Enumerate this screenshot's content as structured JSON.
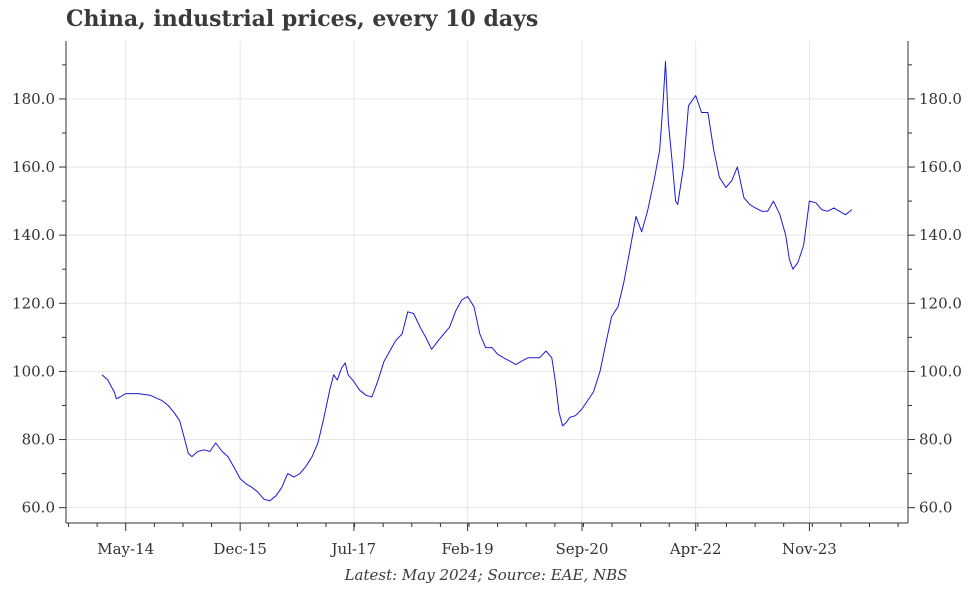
{
  "title": "China, industrial prices, every 10 days",
  "caption": "Latest: May 2024; Source: EAE, NBS",
  "chart_data": {
    "type": "line",
    "title": "China, industrial prices, every 10 days",
    "xlabel": "",
    "ylabel": "",
    "xlim": [
      2013.5,
      2025.2
    ],
    "ylim": [
      55.5,
      197
    ],
    "x_ticks": [
      {
        "value": 2014.33,
        "label": "May-14"
      },
      {
        "value": 2015.92,
        "label": "Dec-15"
      },
      {
        "value": 2017.5,
        "label": "Jul-17"
      },
      {
        "value": 2019.08,
        "label": "Feb-19"
      },
      {
        "value": 2020.67,
        "label": "Sep-20"
      },
      {
        "value": 2022.25,
        "label": "Apr-22"
      },
      {
        "value": 2023.83,
        "label": "Nov-23"
      }
    ],
    "y_ticks": [
      60.0,
      80.0,
      100.0,
      120.0,
      140.0,
      160.0,
      180.0
    ],
    "y_tick_labels": [
      "60.0",
      "80.0",
      "100.0",
      "120.0",
      "140.0",
      "160.0",
      "180.0"
    ],
    "grid": true,
    "line_color": "#1a1adb",
    "series": [
      {
        "name": "",
        "points": [
          [
            2014.0,
            99
          ],
          [
            2014.08,
            97.5
          ],
          [
            2014.17,
            94
          ],
          [
            2014.2,
            92
          ],
          [
            2014.25,
            92.5
          ],
          [
            2014.33,
            93.5
          ],
          [
            2014.5,
            93.5
          ],
          [
            2014.67,
            93
          ],
          [
            2014.83,
            91.5
          ],
          [
            2014.92,
            90
          ],
          [
            2015.0,
            88
          ],
          [
            2015.08,
            85.5
          ],
          [
            2015.15,
            80
          ],
          [
            2015.2,
            76
          ],
          [
            2015.25,
            75
          ],
          [
            2015.33,
            76.5
          ],
          [
            2015.42,
            77
          ],
          [
            2015.5,
            76.5
          ],
          [
            2015.58,
            79
          ],
          [
            2015.67,
            76.5
          ],
          [
            2015.75,
            75
          ],
          [
            2015.83,
            72
          ],
          [
            2015.92,
            68.5
          ],
          [
            2016.0,
            67
          ],
          [
            2016.08,
            66
          ],
          [
            2016.17,
            64.5
          ],
          [
            2016.25,
            62.5
          ],
          [
            2016.33,
            62
          ],
          [
            2016.42,
            63.5
          ],
          [
            2016.5,
            66
          ],
          [
            2016.58,
            70
          ],
          [
            2016.67,
            69
          ],
          [
            2016.75,
            70
          ],
          [
            2016.83,
            72
          ],
          [
            2016.92,
            75
          ],
          [
            2017.0,
            79
          ],
          [
            2017.08,
            86
          ],
          [
            2017.17,
            95
          ],
          [
            2017.22,
            99
          ],
          [
            2017.27,
            97.5
          ],
          [
            2017.33,
            101
          ],
          [
            2017.38,
            102.5
          ],
          [
            2017.42,
            99
          ],
          [
            2017.5,
            97
          ],
          [
            2017.58,
            94.5
          ],
          [
            2017.67,
            93
          ],
          [
            2017.75,
            92.5
          ],
          [
            2017.83,
            97
          ],
          [
            2017.92,
            103
          ],
          [
            2018.0,
            106
          ],
          [
            2018.08,
            109
          ],
          [
            2018.17,
            111
          ],
          [
            2018.25,
            117.5
          ],
          [
            2018.33,
            117
          ],
          [
            2018.42,
            113
          ],
          [
            2018.5,
            110
          ],
          [
            2018.58,
            106.5
          ],
          [
            2018.67,
            109
          ],
          [
            2018.75,
            111
          ],
          [
            2018.83,
            113
          ],
          [
            2018.92,
            118
          ],
          [
            2019.0,
            121
          ],
          [
            2019.08,
            122
          ],
          [
            2019.17,
            119
          ],
          [
            2019.25,
            111
          ],
          [
            2019.33,
            107
          ],
          [
            2019.42,
            107
          ],
          [
            2019.5,
            105
          ],
          [
            2019.58,
            104
          ],
          [
            2019.67,
            103
          ],
          [
            2019.75,
            102
          ],
          [
            2019.83,
            103
          ],
          [
            2019.92,
            104
          ],
          [
            2020.0,
            104
          ],
          [
            2020.08,
            104
          ],
          [
            2020.17,
            106
          ],
          [
            2020.25,
            104
          ],
          [
            2020.3,
            97
          ],
          [
            2020.35,
            88
          ],
          [
            2020.4,
            84
          ],
          [
            2020.45,
            85
          ],
          [
            2020.5,
            86.5
          ],
          [
            2020.58,
            87
          ],
          [
            2020.67,
            89
          ],
          [
            2020.75,
            91.5
          ],
          [
            2020.83,
            94
          ],
          [
            2020.92,
            100
          ],
          [
            2021.0,
            108
          ],
          [
            2021.08,
            116
          ],
          [
            2021.17,
            119
          ],
          [
            2021.25,
            126
          ],
          [
            2021.33,
            135
          ],
          [
            2021.42,
            145.5
          ],
          [
            2021.5,
            141
          ],
          [
            2021.58,
            147
          ],
          [
            2021.67,
            156
          ],
          [
            2021.75,
            165
          ],
          [
            2021.8,
            180
          ],
          [
            2021.83,
            191
          ],
          [
            2021.87,
            173
          ],
          [
            2021.92,
            162
          ],
          [
            2021.97,
            150
          ],
          [
            2022.0,
            149
          ],
          [
            2022.08,
            160
          ],
          [
            2022.15,
            178
          ],
          [
            2022.25,
            181
          ],
          [
            2022.33,
            176
          ],
          [
            2022.42,
            176
          ],
          [
            2022.5,
            165
          ],
          [
            2022.58,
            157
          ],
          [
            2022.67,
            154
          ],
          [
            2022.75,
            156
          ],
          [
            2022.83,
            160
          ],
          [
            2022.92,
            151
          ],
          [
            2023.0,
            149
          ],
          [
            2023.08,
            148
          ],
          [
            2023.17,
            147
          ],
          [
            2023.25,
            147
          ],
          [
            2023.33,
            150
          ],
          [
            2023.42,
            146
          ],
          [
            2023.5,
            140
          ],
          [
            2023.55,
            133
          ],
          [
            2023.6,
            130
          ],
          [
            2023.67,
            132
          ],
          [
            2023.75,
            137
          ],
          [
            2023.83,
            150
          ],
          [
            2023.92,
            149.5
          ],
          [
            2024.0,
            147.5
          ],
          [
            2024.08,
            147
          ],
          [
            2024.17,
            148
          ],
          [
            2024.25,
            147
          ],
          [
            2024.33,
            146
          ],
          [
            2024.42,
            147.5
          ]
        ]
      }
    ]
  }
}
